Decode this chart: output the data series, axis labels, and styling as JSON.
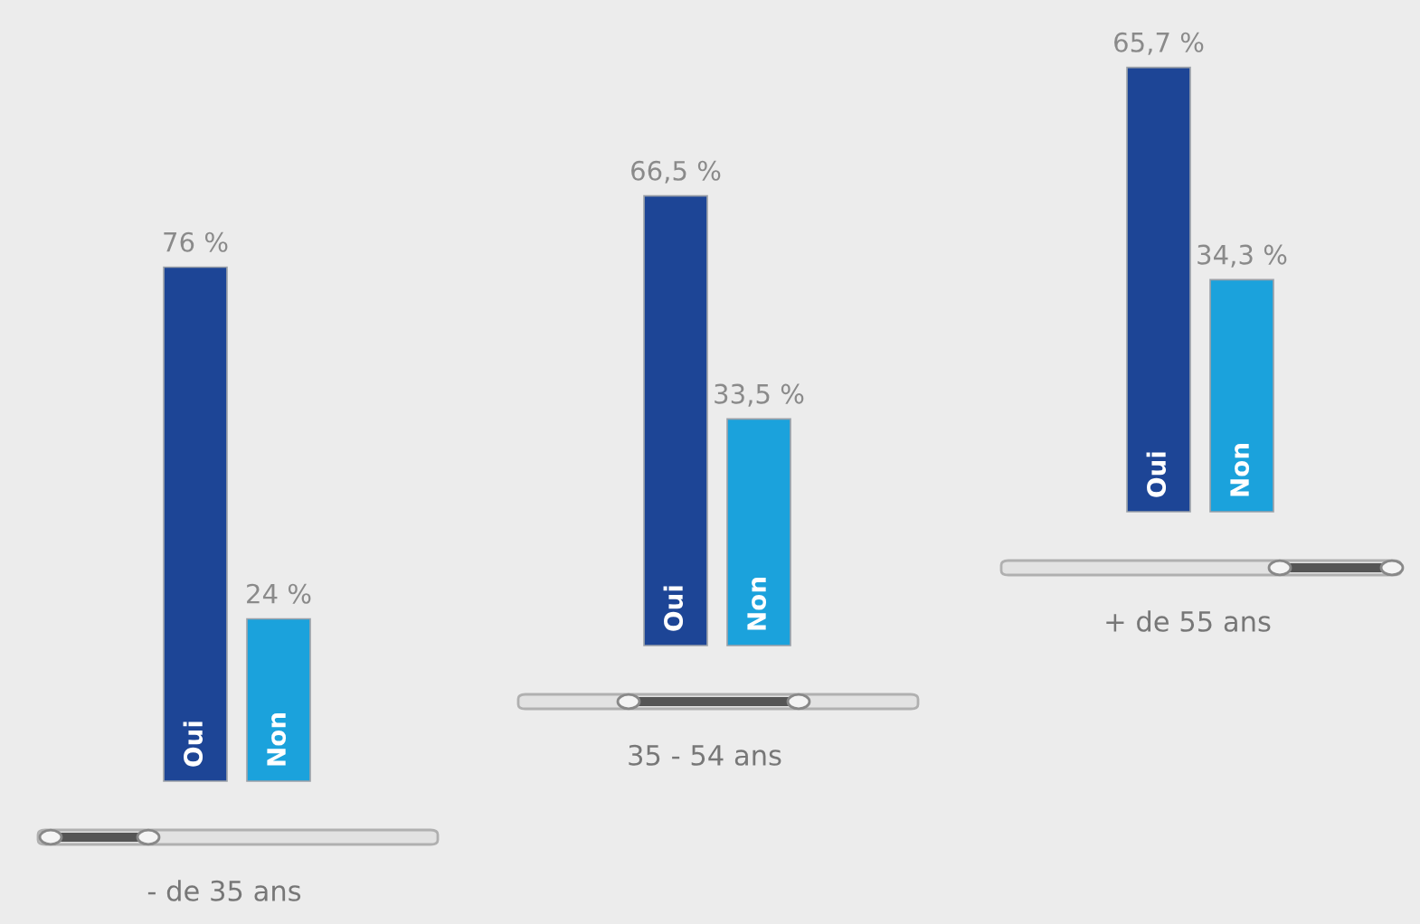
{
  "chart_data": [
    {
      "type": "bar",
      "xlabel": "- de 35 ans",
      "categories": [
        "Oui",
        "Non"
      ],
      "values": [
        76,
        24
      ],
      "colors": [
        "#1d4596",
        "#1ba2dc"
      ],
      "value_labels": [
        "76 %",
        "24 %"
      ]
    },
    {
      "type": "bar",
      "xlabel": "35 - 54 ans",
      "categories": [
        "Oui",
        "Non"
      ],
      "values": [
        66.5,
        33.5
      ],
      "colors": [
        "#1d4596",
        "#1ba2dc"
      ],
      "value_labels": [
        "66,5 %",
        "33,5 %"
      ]
    },
    {
      "type": "bar",
      "xlabel": "+ de 55 ans",
      "categories": [
        "Oui",
        "Non"
      ],
      "values": [
        65.7,
        34.3
      ],
      "colors": [
        "#1d4596",
        "#1ba2dc"
      ],
      "value_labels": [
        "65,7 %",
        "34,3 %"
      ]
    }
  ]
}
